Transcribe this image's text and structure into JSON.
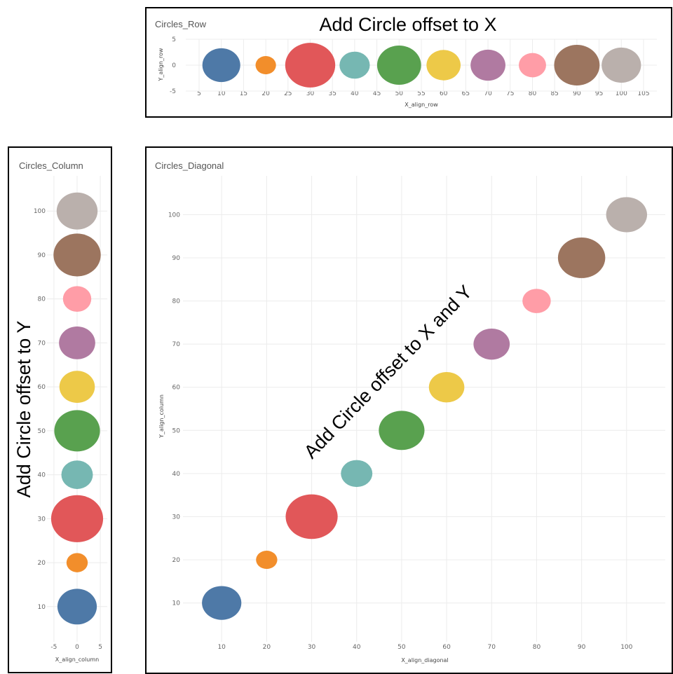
{
  "chart_data": [
    {
      "type": "scatter",
      "title": "Circles_Row",
      "annotation": "Add Circle offset to X",
      "xlabel": "X_align_row",
      "ylabel": "Y_align_row",
      "xlim": [
        2,
        108
      ],
      "ylim": [
        -5,
        5
      ],
      "xticks": [
        5,
        10,
        15,
        20,
        25,
        30,
        35,
        40,
        45,
        50,
        55,
        60,
        65,
        70,
        75,
        80,
        85,
        90,
        95,
        100,
        105
      ],
      "yticks": [
        5,
        0,
        -5
      ],
      "grid": true,
      "points": [
        {
          "x": 10,
          "y": 0,
          "size": 5,
          "color": "#4e79a7"
        },
        {
          "x": 20,
          "y": 0,
          "size": 2.7,
          "color": "#f28e2b"
        },
        {
          "x": 30,
          "y": 0,
          "size": 6.6,
          "color": "#e15759"
        },
        {
          "x": 40,
          "y": 0,
          "size": 4,
          "color": "#76b7b2"
        },
        {
          "x": 50,
          "y": 0,
          "size": 5.8,
          "color": "#59a14f"
        },
        {
          "x": 60,
          "y": 0,
          "size": 4.5,
          "color": "#edc948"
        },
        {
          "x": 70,
          "y": 0,
          "size": 4.6,
          "color": "#b07aa1"
        },
        {
          "x": 80,
          "y": 0,
          "size": 3.6,
          "color": "#ff9da7"
        },
        {
          "x": 90,
          "y": 0,
          "size": 6,
          "color": "#9c755f"
        },
        {
          "x": 100,
          "y": 0,
          "size": 5.2,
          "color": "#bab0ac"
        }
      ]
    },
    {
      "type": "scatter",
      "title": "Circles_Column",
      "annotation": "Add Circle offset to Y",
      "xlabel": "X_align_column",
      "ylabel": "",
      "xlim": [
        -6.5,
        6.5
      ],
      "ylim": [
        2,
        108
      ],
      "xticks": [
        -5,
        0,
        5
      ],
      "yticks": [
        10,
        20,
        30,
        40,
        50,
        60,
        70,
        80,
        90,
        100
      ],
      "grid": true,
      "points": [
        {
          "x": 0,
          "y": 10,
          "size": 5,
          "color": "#4e79a7"
        },
        {
          "x": 0,
          "y": 20,
          "size": 2.7,
          "color": "#f28e2b"
        },
        {
          "x": 0,
          "y": 30,
          "size": 6.6,
          "color": "#e15759"
        },
        {
          "x": 0,
          "y": 40,
          "size": 4,
          "color": "#76b7b2"
        },
        {
          "x": 0,
          "y": 50,
          "size": 5.8,
          "color": "#59a14f"
        },
        {
          "x": 0,
          "y": 60,
          "size": 4.5,
          "color": "#edc948"
        },
        {
          "x": 0,
          "y": 70,
          "size": 4.6,
          "color": "#b07aa1"
        },
        {
          "x": 0,
          "y": 80,
          "size": 3.6,
          "color": "#ff9da7"
        },
        {
          "x": 0,
          "y": 90,
          "size": 6,
          "color": "#9c755f"
        },
        {
          "x": 0,
          "y": 100,
          "size": 5.2,
          "color": "#bab0ac"
        }
      ]
    },
    {
      "type": "scatter",
      "title": "Circles_Diagonal",
      "annotation": "Add Circle offset to X and Y",
      "xlabel": "X_align_diagonal",
      "ylabel": "Y_align_column",
      "xlim": [
        1.4,
        108.6
      ],
      "ylim": [
        1,
        109
      ],
      "xticks": [
        10,
        20,
        30,
        40,
        50,
        60,
        70,
        80,
        90,
        100
      ],
      "yticks": [
        10,
        20,
        30,
        40,
        50,
        60,
        70,
        80,
        90,
        100
      ],
      "grid": true,
      "points": [
        {
          "x": 10,
          "y": 10,
          "size": 5,
          "color": "#4e79a7"
        },
        {
          "x": 20,
          "y": 20,
          "size": 2.7,
          "color": "#f28e2b"
        },
        {
          "x": 30,
          "y": 30,
          "size": 6.6,
          "color": "#e15759"
        },
        {
          "x": 40,
          "y": 40,
          "size": 4,
          "color": "#76b7b2"
        },
        {
          "x": 50,
          "y": 50,
          "size": 5.8,
          "color": "#59a14f"
        },
        {
          "x": 60,
          "y": 60,
          "size": 4.5,
          "color": "#edc948"
        },
        {
          "x": 70,
          "y": 70,
          "size": 4.6,
          "color": "#b07aa1"
        },
        {
          "x": 80,
          "y": 80,
          "size": 3.6,
          "color": "#ff9da7"
        },
        {
          "x": 90,
          "y": 90,
          "size": 6,
          "color": "#9c755f"
        },
        {
          "x": 100,
          "y": 100,
          "size": 5.2,
          "color": "#bab0ac"
        }
      ]
    }
  ]
}
